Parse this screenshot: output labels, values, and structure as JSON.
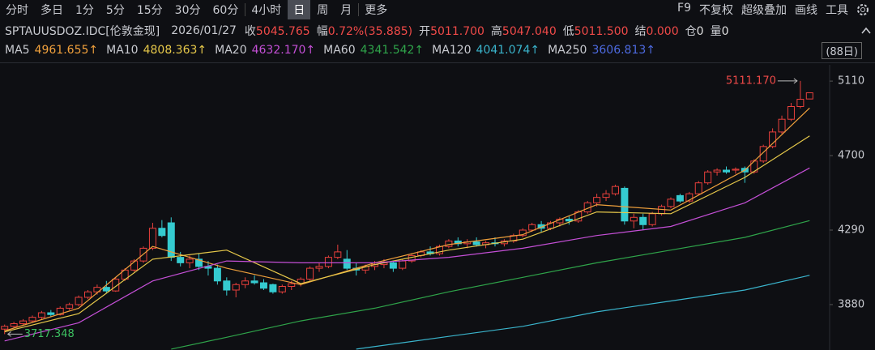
{
  "toolbar": {
    "periods": [
      "分时",
      "多日",
      "1分",
      "5分",
      "15分",
      "30分",
      "60分",
      "4小时",
      "日",
      "周",
      "月",
      "更多"
    ],
    "selected": 8,
    "tools": [
      "F9",
      "不复权",
      "超级叠加",
      "画线",
      "工具"
    ]
  },
  "quote": {
    "symbol": "SPTAUUSDOZ.IDC[伦敦金现]",
    "date": "2026/01/27",
    "fields": [
      {
        "label": "收",
        "value": "5045.765",
        "color": "#f04a48"
      },
      {
        "label": "幅",
        "value": "0.72%(35.885)",
        "color": "#f04a48"
      },
      {
        "label": "开",
        "value": "5011.700",
        "color": "#f04a48"
      },
      {
        "label": "高",
        "value": "5047.040",
        "color": "#f04a48"
      },
      {
        "label": "低",
        "value": "5011.500",
        "color": "#f04a48"
      },
      {
        "label": "结",
        "value": "0.000",
        "color": "#f04a48"
      },
      {
        "label": "仓",
        "value": "0",
        "color": "#e0e0e0"
      },
      {
        "label": "量",
        "value": "0",
        "color": "#e0e0e0"
      }
    ]
  },
  "chart_data": {
    "type": "candlestick",
    "range_label": "(88日)",
    "up_color": "#e8403c",
    "down_color": "#35cbd0",
    "ylim": [
      3630,
      5164
    ],
    "yticks": [
      5110,
      4700,
      4290,
      3880
    ],
    "candles": [
      [
        3745,
        3770,
        3717.348,
        3760
      ],
      [
        3760,
        3785,
        3750,
        3775
      ],
      [
        3775,
        3800,
        3765,
        3790
      ],
      [
        3790,
        3820,
        3780,
        3810
      ],
      [
        3810,
        3845,
        3800,
        3835
      ],
      [
        3835,
        3850,
        3815,
        3825
      ],
      [
        3825,
        3870,
        3820,
        3860
      ],
      [
        3860,
        3890,
        3850,
        3880
      ],
      [
        3880,
        3930,
        3870,
        3920
      ],
      [
        3920,
        3960,
        3910,
        3950
      ],
      [
        3950,
        3990,
        3935,
        3975
      ],
      [
        3975,
        4010,
        3940,
        3955
      ],
      [
        3955,
        4030,
        3950,
        4020
      ],
      [
        4020,
        4080,
        4010,
        4070
      ],
      [
        4070,
        4130,
        4060,
        4120
      ],
      [
        4120,
        4200,
        4110,
        4190
      ],
      [
        4190,
        4330,
        4180,
        4300
      ],
      [
        4300,
        4345,
        4250,
        4260
      ],
      [
        4330,
        4360,
        4120,
        4140
      ],
      [
        4140,
        4170,
        4090,
        4110
      ],
      [
        4110,
        4150,
        4080,
        4130
      ],
      [
        4130,
        4160,
        4070,
        4090
      ],
      [
        4090,
        4120,
        4040,
        4080
      ],
      [
        4080,
        4100,
        3990,
        4010
      ],
      [
        4010,
        4030,
        3930,
        3960
      ],
      [
        3960,
        4000,
        3920,
        3990
      ],
      [
        3990,
        4030,
        3970,
        4010
      ],
      [
        4010,
        4040,
        3990,
        4000
      ],
      [
        4000,
        4020,
        3960,
        3970
      ],
      [
        3990,
        3995,
        3940,
        3950
      ],
      [
        3950,
        3990,
        3940,
        3980
      ],
      [
        3980,
        4010,
        3960,
        3995
      ],
      [
        3995,
        4030,
        3980,
        4020
      ],
      [
        4020,
        4090,
        4010,
        4080
      ],
      [
        4080,
        4110,
        4060,
        4090
      ],
      [
        4090,
        4150,
        4080,
        4140
      ],
      [
        4140,
        4210,
        4130,
        4170
      ],
      [
        4130,
        4180,
        4070,
        4080
      ],
      [
        4080,
        4110,
        4040,
        4070
      ],
      [
        4070,
        4100,
        4050,
        4090
      ],
      [
        4090,
        4120,
        4070,
        4100
      ],
      [
        4100,
        4130,
        4080,
        4110
      ],
      [
        4110,
        4120,
        4060,
        4080
      ],
      [
        4080,
        4130,
        4070,
        4120
      ],
      [
        4120,
        4160,
        4110,
        4150
      ],
      [
        4150,
        4180,
        4140,
        4170
      ],
      [
        4170,
        4200,
        4150,
        4160
      ],
      [
        4160,
        4210,
        4150,
        4200
      ],
      [
        4200,
        4240,
        4190,
        4230
      ],
      [
        4230,
        4250,
        4200,
        4215
      ],
      [
        4215,
        4240,
        4190,
        4225
      ],
      [
        4225,
        4250,
        4200,
        4210
      ],
      [
        4210,
        4230,
        4190,
        4220
      ],
      [
        4220,
        4250,
        4200,
        4215
      ],
      [
        4215,
        4240,
        4200,
        4230
      ],
      [
        4230,
        4270,
        4220,
        4260
      ],
      [
        4260,
        4300,
        4250,
        4290
      ],
      [
        4290,
        4330,
        4280,
        4320
      ],
      [
        4320,
        4340,
        4280,
        4300
      ],
      [
        4300,
        4340,
        4290,
        4330
      ],
      [
        4330,
        4360,
        4310,
        4350
      ],
      [
        4350,
        4370,
        4320,
        4340
      ],
      [
        4340,
        4400,
        4330,
        4390
      ],
      [
        4390,
        4450,
        4380,
        4440
      ],
      [
        4440,
        4490,
        4420,
        4470
      ],
      [
        4470,
        4510,
        4450,
        4490
      ],
      [
        4490,
        4540,
        4480,
        4530
      ],
      [
        4520,
        4530,
        4320,
        4340
      ],
      [
        4340,
        4380,
        4300,
        4360
      ],
      [
        4360,
        4380,
        4290,
        4320
      ],
      [
        4320,
        4390,
        4310,
        4380
      ],
      [
        4380,
        4430,
        4370,
        4420
      ],
      [
        4420,
        4470,
        4410,
        4460
      ],
      [
        4480,
        4490,
        4440,
        4450
      ],
      [
        4450,
        4500,
        4440,
        4490
      ],
      [
        4490,
        4560,
        4480,
        4550
      ],
      [
        4550,
        4620,
        4540,
        4610
      ],
      [
        4610,
        4630,
        4590,
        4620
      ],
      [
        4620,
        4640,
        4600,
        4610
      ],
      [
        4620,
        4635,
        4600,
        4625
      ],
      [
        4630,
        4640,
        4550,
        4610
      ],
      [
        4610,
        4680,
        4600,
        4670
      ],
      [
        4670,
        4760,
        4660,
        4750
      ],
      [
        4750,
        4850,
        4740,
        4830
      ],
      [
        4830,
        4920,
        4820,
        4900
      ],
      [
        4900,
        4990,
        4890,
        4970
      ],
      [
        4970,
        5111.17,
        4960,
        5010
      ],
      [
        5011.7,
        5047.04,
        5011.5,
        5045.765
      ]
    ],
    "series": [
      {
        "name": "MA5",
        "value_label": "4961.655↑",
        "color": "#f0a03c",
        "x": [
          0,
          8,
          16,
          24,
          32,
          40,
          48,
          56,
          64,
          72,
          80,
          87
        ],
        "values": [
          3735,
          3860,
          4200,
          4080,
          3990,
          4110,
          4210,
          4265,
          4430,
          4400,
          4620,
          4962
        ]
      },
      {
        "name": "MA10",
        "value_label": "4808.363↑",
        "color": "#e6c84a",
        "x": [
          0,
          8,
          16,
          24,
          32,
          40,
          48,
          56,
          64,
          72,
          80,
          87
        ],
        "values": [
          3730,
          3830,
          4130,
          4180,
          3995,
          4100,
          4180,
          4240,
          4390,
          4380,
          4580,
          4808
        ]
      },
      {
        "name": "MA20",
        "value_label": "4632.170↑",
        "color": "#c44fd6",
        "x": [
          0,
          8,
          16,
          24,
          32,
          40,
          48,
          56,
          64,
          72,
          80,
          87
        ],
        "values": [
          3680,
          3780,
          4010,
          4120,
          4110,
          4110,
          4140,
          4190,
          4260,
          4310,
          4440,
          4632
        ]
      },
      {
        "name": "MA60",
        "value_label": "4341.542↑",
        "color": "#2fa44a",
        "x": [
          18,
          24,
          32,
          40,
          48,
          56,
          64,
          72,
          80,
          87
        ],
        "values": [
          3635,
          3700,
          3790,
          3860,
          3950,
          4030,
          4110,
          4180,
          4250,
          4342
        ]
      },
      {
        "name": "MA120",
        "value_label": "4041.074↑",
        "color": "#3ab4cc",
        "x": [
          38,
          48,
          56,
          64,
          72,
          80,
          87
        ],
        "values": [
          3635,
          3705,
          3760,
          3840,
          3900,
          3960,
          4041
        ]
      },
      {
        "name": "MA250",
        "value_label": "3606.813↑",
        "color": "#4d6ae0"
      }
    ],
    "annotations": [
      {
        "value": 5111.17,
        "label": "5111.170",
        "x": 86,
        "color": "#f04a48"
      },
      {
        "value": 3717.348,
        "label": "3717.348",
        "x": 0,
        "color": "#3cc060"
      }
    ]
  }
}
